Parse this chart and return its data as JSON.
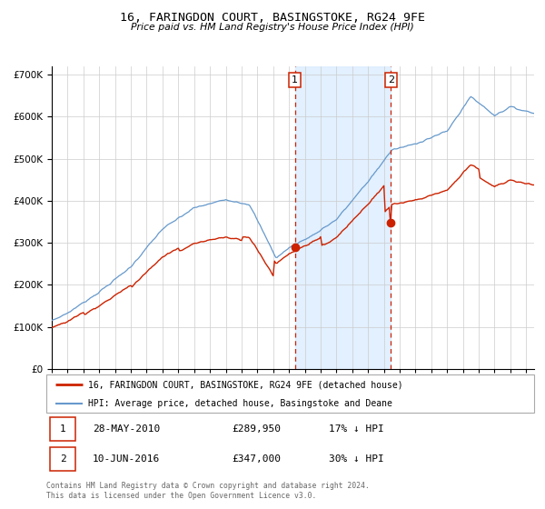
{
  "title": "16, FARINGDON COURT, BASINGSTOKE, RG24 9FE",
  "subtitle": "Price paid vs. HM Land Registry's House Price Index (HPI)",
  "legend_line1": "16, FARINGDON COURT, BASINGSTOKE, RG24 9FE (detached house)",
  "legend_line2": "HPI: Average price, detached house, Basingstoke and Deane",
  "footer1": "Contains HM Land Registry data © Crown copyright and database right 2024.",
  "footer2": "This data is licensed under the Open Government Licence v3.0.",
  "transaction1_date": "28-MAY-2010",
  "transaction1_price": "£289,950",
  "transaction1_hpi": "17% ↓ HPI",
  "transaction2_date": "10-JUN-2016",
  "transaction2_price": "£347,000",
  "transaction2_hpi": "30% ↓ HPI",
  "transaction1_year": 2010.38,
  "transaction1_value": 289950,
  "transaction2_year": 2016.44,
  "transaction2_value": 347000,
  "hpi_color": "#6699cc",
  "price_color": "#cc2200",
  "shaded_color": "#ddeeff",
  "ylim_min": 0,
  "ylim_max": 720000,
  "xlim_min": 1995.0,
  "xlim_max": 2025.5
}
